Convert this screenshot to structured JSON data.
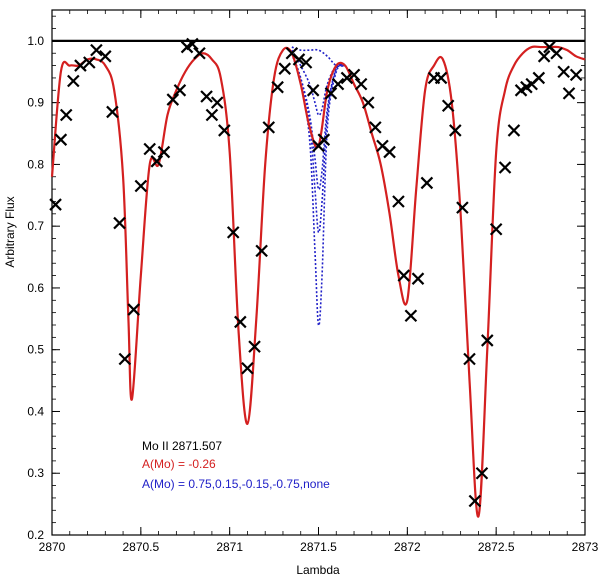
{
  "chart_data": {
    "type": "line",
    "title": "",
    "xlabel": "Lambda",
    "ylabel": "Arbitrary Flux",
    "xlim": [
      2870,
      2873
    ],
    "ylim": [
      0.2,
      1.05
    ],
    "xticks": [
      2870,
      2870.5,
      2871,
      2871.5,
      2872,
      2872.5,
      2873
    ],
    "xtick_labels": [
      "2870",
      "2870.5",
      "2871",
      "2871.5",
      "2872",
      "2872.5",
      "2873"
    ],
    "yticks": [
      0.2,
      0.3,
      0.4,
      0.5,
      0.6,
      0.7,
      0.8,
      0.9,
      1.0
    ],
    "ytick_labels": [
      "0.2",
      "0.3",
      "0.4",
      "0.5",
      "0.6",
      "0.7",
      "0.8",
      "0.9",
      "1.0"
    ],
    "continuum": 1.0,
    "legend": {
      "placement": "bottom-left",
      "entries": [
        {
          "text": "Mo II 2871.507",
          "color": "#000000"
        },
        {
          "text": "A(Mo) = -0.26",
          "color": "#d42020"
        },
        {
          "text": "A(Mo) = 0.75,0.15,-0.15,-0.75,none",
          "color": "#2020c8"
        }
      ]
    },
    "series": [
      {
        "name": "A(Mo) = -0.26",
        "style": "solid",
        "color": "#d42020",
        "x": [
          2870.0,
          2870.05,
          2870.1,
          2870.15,
          2870.2,
          2870.25,
          2870.3,
          2870.35,
          2870.4,
          2870.43,
          2870.45,
          2870.5,
          2870.55,
          2870.6,
          2870.65,
          2870.7,
          2870.75,
          2870.8,
          2870.85,
          2870.9,
          2870.95,
          2871.0,
          2871.05,
          2871.1,
          2871.15,
          2871.2,
          2871.25,
          2871.3,
          2871.35,
          2871.4,
          2871.45,
          2871.5,
          2871.55,
          2871.6,
          2871.65,
          2871.7,
          2871.75,
          2871.8,
          2871.85,
          2871.9,
          2871.95,
          2872.0,
          2872.05,
          2872.1,
          2872.15,
          2872.2,
          2872.25,
          2872.3,
          2872.35,
          2872.4,
          2872.45,
          2872.5,
          2872.55,
          2872.6,
          2872.65,
          2872.7,
          2872.75,
          2872.8,
          2872.85,
          2872.9,
          2872.95,
          2873.0
        ],
        "y": [
          0.78,
          0.95,
          0.96,
          0.96,
          0.97,
          0.97,
          0.96,
          0.92,
          0.78,
          0.55,
          0.42,
          0.62,
          0.8,
          0.8,
          0.88,
          0.92,
          0.95,
          0.97,
          0.98,
          0.97,
          0.94,
          0.82,
          0.53,
          0.38,
          0.55,
          0.8,
          0.94,
          0.985,
          0.98,
          0.93,
          0.86,
          0.83,
          0.92,
          0.96,
          0.96,
          0.93,
          0.9,
          0.85,
          0.8,
          0.72,
          0.62,
          0.58,
          0.76,
          0.92,
          0.96,
          0.97,
          0.9,
          0.72,
          0.45,
          0.23,
          0.5,
          0.82,
          0.92,
          0.96,
          0.98,
          0.99,
          0.99,
          0.99,
          0.99,
          0.985,
          0.975,
          0.97
        ]
      },
      {
        "name": "A(Mo) = 0.75",
        "style": "dotted",
        "color": "#2020c8",
        "x": [
          2871.35,
          2871.4,
          2871.45,
          2871.48,
          2871.5,
          2871.52,
          2871.55,
          2871.6,
          2871.65
        ],
        "y": [
          0.98,
          0.93,
          0.84,
          0.66,
          0.54,
          0.62,
          0.86,
          0.95,
          0.96
        ]
      },
      {
        "name": "A(Mo) = 0.15",
        "style": "dotted",
        "color": "#2020c8",
        "x": [
          2871.35,
          2871.4,
          2871.45,
          2871.48,
          2871.5,
          2871.52,
          2871.55,
          2871.6,
          2871.65
        ],
        "y": [
          0.98,
          0.935,
          0.87,
          0.76,
          0.69,
          0.74,
          0.88,
          0.955,
          0.96
        ]
      },
      {
        "name": "A(Mo) = -0.15",
        "style": "dotted",
        "color": "#2020c8",
        "x": [
          2871.35,
          2871.4,
          2871.45,
          2871.48,
          2871.5,
          2871.52,
          2871.55,
          2871.6,
          2871.65
        ],
        "y": [
          0.98,
          0.94,
          0.88,
          0.81,
          0.76,
          0.79,
          0.89,
          0.955,
          0.96
        ]
      },
      {
        "name": "A(Mo) = -0.75",
        "style": "dotted",
        "color": "#2020c8",
        "x": [
          2871.35,
          2871.4,
          2871.45,
          2871.48,
          2871.5,
          2871.52,
          2871.55,
          2871.6,
          2871.65
        ],
        "y": [
          0.985,
          0.96,
          0.93,
          0.9,
          0.88,
          0.89,
          0.93,
          0.96,
          0.96
        ]
      },
      {
        "name": "none",
        "style": "dotted",
        "color": "#2020c8",
        "x": [
          2871.35,
          2871.4,
          2871.45,
          2871.5,
          2871.55,
          2871.6,
          2871.65
        ],
        "y": [
          0.99,
          0.985,
          0.985,
          0.985,
          0.975,
          0.96,
          0.96
        ]
      }
    ],
    "observed": {
      "name": "observed",
      "marker": "x",
      "color": "#000000",
      "x": [
        2870.02,
        2870.05,
        2870.08,
        2870.12,
        2870.16,
        2870.21,
        2870.25,
        2870.3,
        2870.34,
        2870.38,
        2870.41,
        2870.46,
        2870.5,
        2870.55,
        2870.59,
        2870.63,
        2870.68,
        2870.72,
        2870.76,
        2870.79,
        2870.83,
        2870.87,
        2870.9,
        2870.93,
        2870.97,
        2871.02,
        2871.06,
        2871.1,
        2871.14,
        2871.18,
        2871.22,
        2871.27,
        2871.31,
        2871.35,
        2871.39,
        2871.43,
        2871.47,
        2871.5,
        2871.53,
        2871.57,
        2871.61,
        2871.66,
        2871.7,
        2871.74,
        2871.78,
        2871.82,
        2871.86,
        2871.9,
        2871.95,
        2871.98,
        2872.02,
        2872.06,
        2872.11,
        2872.15,
        2872.19,
        2872.23,
        2872.27,
        2872.31,
        2872.35,
        2872.38,
        2872.42,
        2872.45,
        2872.5,
        2872.55,
        2872.6,
        2872.64,
        2872.67,
        2872.7,
        2872.74,
        2872.77,
        2872.8,
        2872.84,
        2872.88,
        2872.91,
        2872.95
      ],
      "y": [
        0.735,
        0.84,
        0.88,
        0.935,
        0.96,
        0.965,
        0.985,
        0.975,
        0.885,
        0.705,
        0.485,
        0.565,
        0.765,
        0.825,
        0.805,
        0.82,
        0.905,
        0.92,
        0.99,
        0.995,
        0.98,
        0.91,
        0.88,
        0.9,
        0.855,
        0.69,
        0.545,
        0.47,
        0.505,
        0.66,
        0.86,
        0.925,
        0.955,
        0.98,
        0.97,
        0.965,
        0.92,
        0.83,
        0.84,
        0.915,
        0.93,
        0.94,
        0.945,
        0.93,
        0.9,
        0.86,
        0.83,
        0.82,
        0.74,
        0.62,
        0.555,
        0.615,
        0.77,
        0.94,
        0.94,
        0.895,
        0.855,
        0.73,
        0.485,
        0.255,
        0.3,
        0.515,
        0.695,
        0.795,
        0.855,
        0.92,
        0.925,
        0.93,
        0.94,
        0.975,
        0.99,
        0.98,
        0.95,
        0.915,
        0.945
      ]
    }
  }
}
